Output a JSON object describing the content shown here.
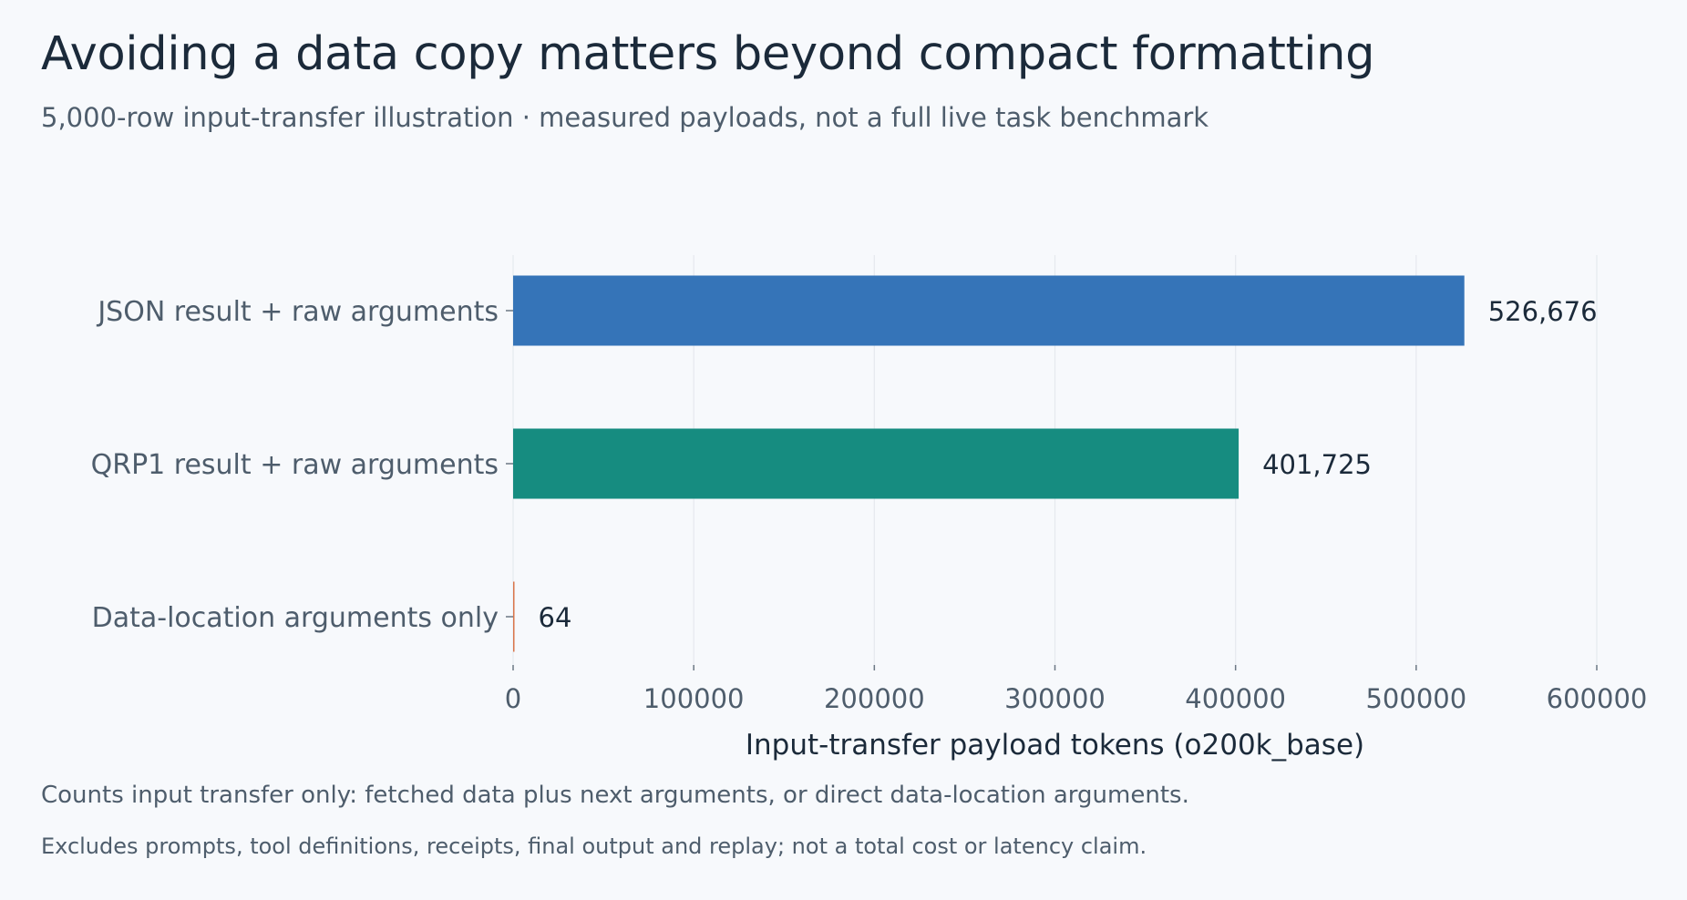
{
  "title": "Avoiding a data copy matters beyond compact formatting",
  "subtitle": "5,000-row input-transfer illustration ·   measured payloads, not a full live task benchmark",
  "notes": [
    "Counts input transfer only: fetched data plus next arguments, or direct data-location arguments.",
    "Excludes prompts, tool definitions, receipts, final output and replay; not a total cost or latency claim."
  ],
  "chart_data": {
    "type": "bar",
    "orientation": "horizontal",
    "title": "Avoiding a data copy matters beyond compact formatting",
    "xlabel": "Input-transfer payload tokens (o200k_base)",
    "ylabel": "",
    "xlim": [
      0,
      600000
    ],
    "xticks": [
      0,
      100000,
      200000,
      300000,
      400000,
      500000,
      600000
    ],
    "grid": "vertical",
    "categories": [
      "JSON result + raw arguments",
      "QRP1 result + raw arguments",
      "Data-location arguments only"
    ],
    "values": [
      526676,
      401725,
      64
    ],
    "value_labels": [
      "526,676",
      "401,725",
      "64"
    ],
    "colors": [
      "#3574b8",
      "#168c80",
      "#d9754a"
    ]
  }
}
